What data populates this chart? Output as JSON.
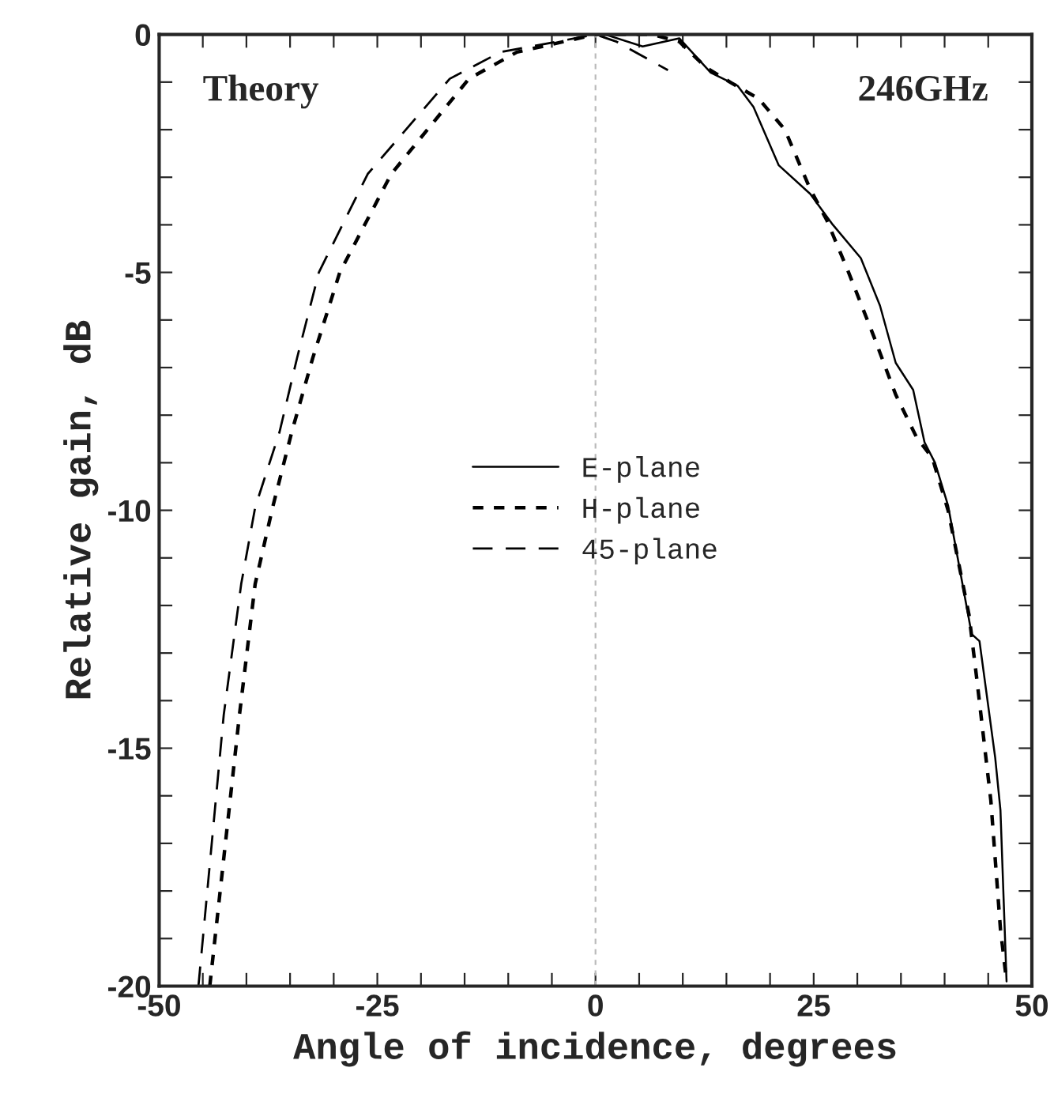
{
  "chart_data": {
    "type": "line",
    "xlabel": "Angle of incidence, degrees",
    "ylabel": "Relative gain, dB",
    "xlim": [
      -50,
      50
    ],
    "ylim": [
      -20,
      0
    ],
    "xticks": [
      -50,
      {
        "value": -45,
        "label": null
      },
      {
        "value": -40,
        "label": null
      },
      {
        "value": -35,
        "label": null
      },
      {
        "value": -30,
        "label": null
      },
      -25,
      {
        "value": -20,
        "label": null
      },
      {
        "value": -15,
        "label": null
      },
      {
        "value": -10,
        "label": null
      },
      {
        "value": -5,
        "label": null
      },
      0,
      {
        "value": 5,
        "label": null
      },
      {
        "value": 10,
        "label": null
      },
      {
        "value": 15,
        "label": null
      },
      {
        "value": 20,
        "label": null
      },
      25,
      {
        "value": 30,
        "label": null
      },
      {
        "value": 35,
        "label": null
      },
      {
        "value": 40,
        "label": null
      },
      {
        "value": 45,
        "label": null
      },
      50
    ],
    "yticks": [
      -20,
      {
        "value": -19,
        "label": null
      },
      {
        "value": -18,
        "label": null
      },
      {
        "value": -17,
        "label": null
      },
      {
        "value": -16,
        "label": null
      },
      -15,
      {
        "value": -14,
        "label": null
      },
      {
        "value": -13,
        "label": null
      },
      {
        "value": -12,
        "label": null
      },
      {
        "value": -11,
        "label": null
      },
      -10,
      {
        "value": -9,
        "label": null
      },
      {
        "value": -8,
        "label": null
      },
      {
        "value": -7,
        "label": null
      },
      {
        "value": -6,
        "label": null
      },
      -5,
      {
        "value": -4,
        "label": null
      },
      {
        "value": -3,
        "label": null
      },
      {
        "value": -2,
        "label": null
      },
      {
        "value": -1,
        "label": null
      },
      0
    ],
    "grid": false,
    "legend": "center",
    "marker": "none",
    "annotations": [
      "Theory",
      "246GHz"
    ],
    "ref_lines": [
      {
        "axis": "x",
        "value": 0,
        "color": "#bbbbbb",
        "line_style": "dotted"
      }
    ],
    "series": [
      {
        "name": "E-plane",
        "color": "#000000",
        "line_style": "solid",
        "x": [
          1.1,
          5.4,
          9.6,
          13.2,
          16.3,
          18.1,
          21,
          24.6,
          27.2,
          30.4,
          32.6,
          34.4,
          36.4,
          37.7,
          38.9,
          40.4,
          43.1,
          44,
          45.8,
          46.4,
          47.1
        ],
        "values": [
          0,
          -0.25,
          -0.08,
          -0.8,
          -1.08,
          -1.52,
          -2.75,
          -3.35,
          -4.0,
          -4.7,
          -5.7,
          -6.9,
          -7.47,
          -8.57,
          -9.0,
          -9.9,
          -12.6,
          -12.75,
          -15.2,
          -16.3,
          -19.9
        ]
      },
      {
        "name": "H-plane",
        "color": "#000000",
        "line_style": "dotted",
        "x": [
          -44.2,
          -40.8,
          -39,
          -37,
          -34.8,
          -32.4,
          -29.3,
          -23.4,
          -14.5,
          -9,
          0,
          2.4,
          6.5,
          9.6,
          12.7,
          15.6,
          18.7,
          21.7,
          24.6,
          26.5,
          29,
          31.9,
          34.4,
          36.8,
          38.6,
          40.4,
          42.8,
          43.7,
          45.3,
          46.4,
          47.1
        ],
        "values": [
          -20,
          -14.3,
          -11.55,
          -9.94,
          -8.35,
          -6.8,
          -5,
          -2.93,
          -0.93,
          -0.37,
          0,
          0,
          0,
          -0.15,
          -0.7,
          -1.02,
          -1.35,
          -2.0,
          -3.25,
          -3.9,
          -5.0,
          -6.35,
          -7.57,
          -8.47,
          -8.9,
          -10.0,
          -12.2,
          -13.56,
          -16.1,
          -18.8,
          -19.9
        ]
      },
      {
        "name": "45-plane",
        "color": "#000000",
        "line_style": "dashed",
        "x": [
          -45.5,
          -42.6,
          -40.6,
          -39,
          -36.2,
          -34.2,
          -31.7,
          -26.1,
          -16.7,
          -10.9,
          0,
          2.4,
          8.3
        ],
        "values": [
          -20,
          -14.3,
          -11.55,
          -9.94,
          -8.35,
          -6.8,
          -5,
          -2.93,
          -0.93,
          -0.37,
          0,
          -0.15,
          -0.75
        ]
      }
    ]
  }
}
